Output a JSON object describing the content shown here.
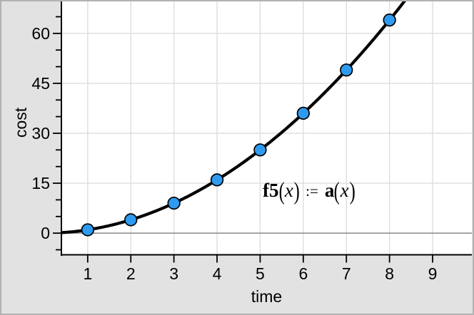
{
  "window": {
    "kind": "graph-view"
  },
  "chart_data": {
    "type": "scatter",
    "title": "",
    "xlabel": "time",
    "ylabel": "cost",
    "x": [
      1,
      2,
      3,
      4,
      5,
      6,
      7,
      8
    ],
    "y": [
      1,
      4,
      9,
      16,
      25,
      36,
      49,
      64
    ],
    "fit": {
      "fn": "x^2",
      "label": "f5(x) := a(x)",
      "domain": [
        0.39,
        8.6
      ]
    },
    "x_ticks": [
      1,
      2,
      3,
      4,
      5,
      6,
      7,
      8,
      9
    ],
    "y_ticks": [
      0,
      15,
      30,
      45,
      60
    ],
    "y_minor_step": 5,
    "xlim": [
      0.39,
      9.91
    ],
    "ylim": [
      -6.5,
      69.6
    ],
    "grid": true,
    "legend": "none",
    "colors": {
      "point_fill": "#2E9BF0",
      "point_stroke": "#000000",
      "curve": "#000000",
      "grid": "#dedede",
      "zero_line": "#8a8a8a",
      "axis": "#000000",
      "margin_bg": "#e2e2e2",
      "plot_bg": "#ffffff",
      "window_border": "#b2b2b2"
    }
  },
  "formula": {
    "lhs": "f5",
    "open": "(",
    "arg": "x",
    "close": ")",
    "assign": ":=",
    "rhs": "a"
  }
}
